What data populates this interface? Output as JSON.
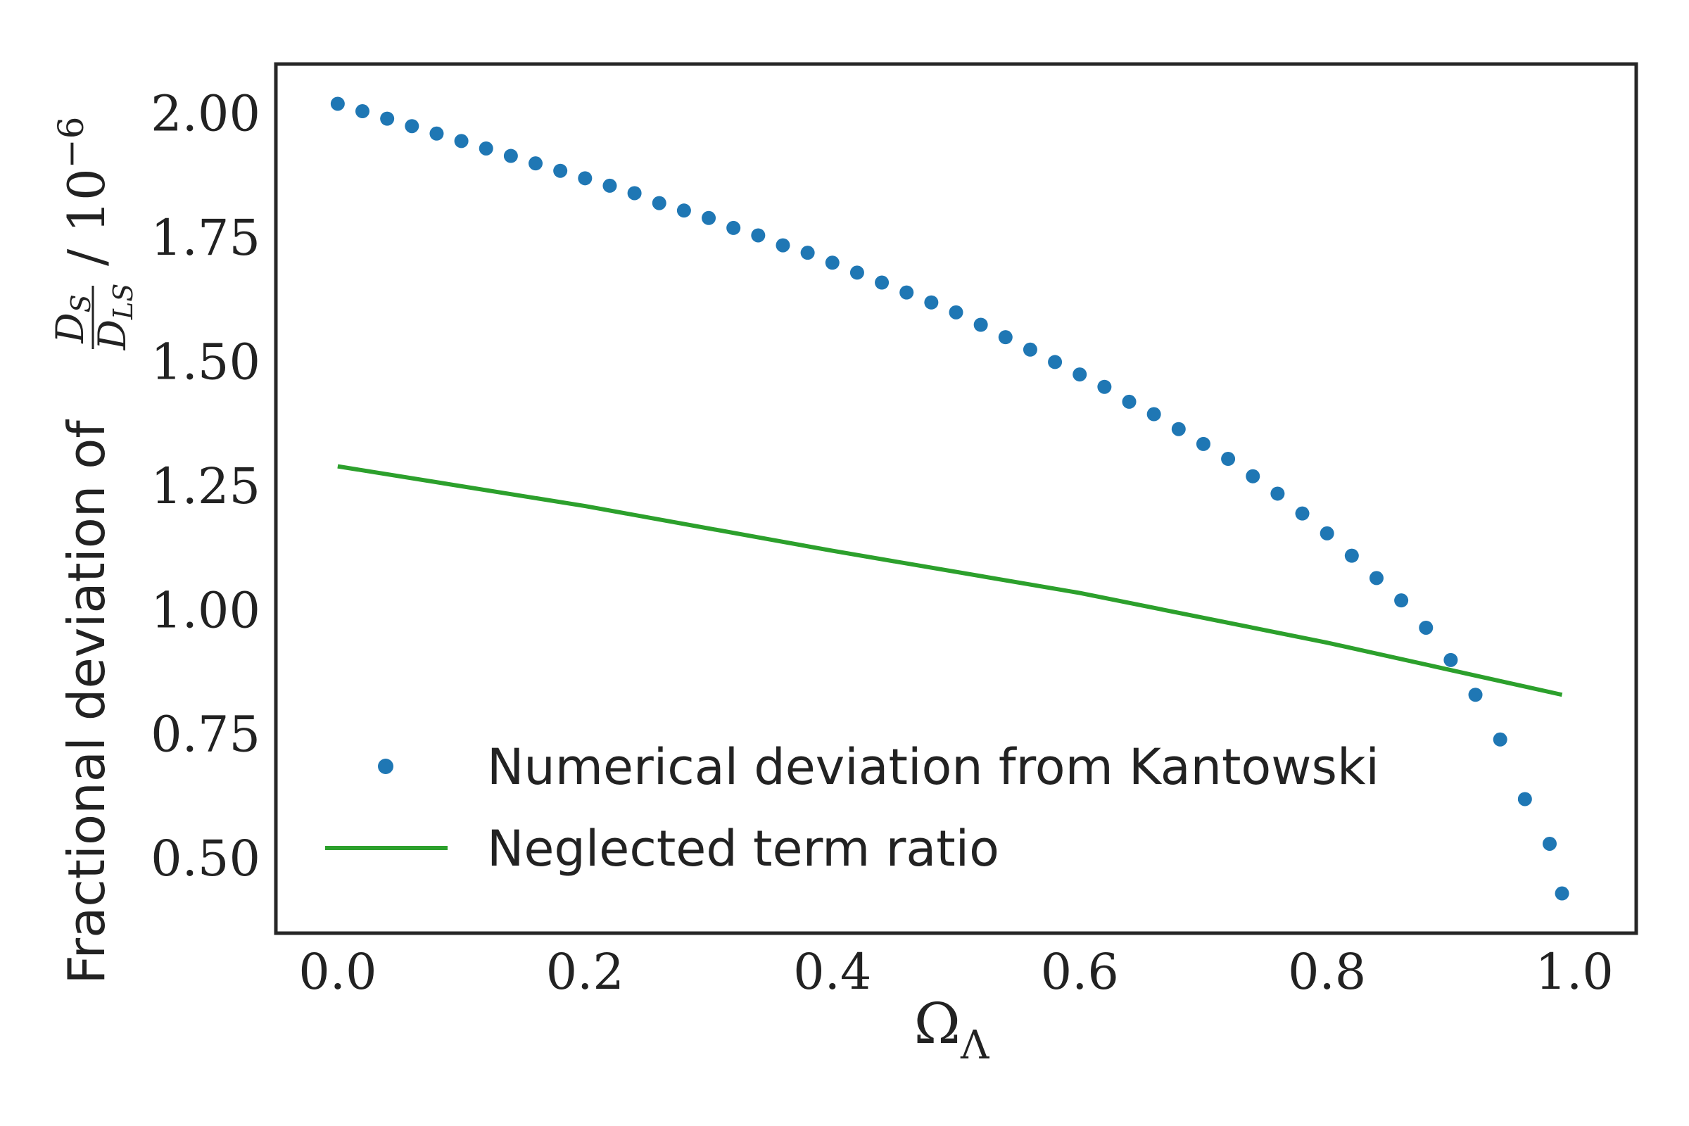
{
  "chart_data": {
    "type": "scatter",
    "title": "",
    "xlabel": {
      "base": "Ω",
      "sub": "Λ"
    },
    "ylabel": {
      "prefix": "Fractional deviation of",
      "frac_num": "D",
      "frac_num_sub": "S",
      "frac_den": "D",
      "frac_den_sub": "LS",
      "suffix": "/ 10",
      "suffix_exp": "−6"
    },
    "xlim": [
      -0.05,
      1.05
    ],
    "ylim": [
      0.35,
      2.1
    ],
    "xticks": [
      0.0,
      0.2,
      0.4,
      0.6,
      0.8,
      1.0
    ],
    "xtick_labels": [
      "0.0",
      "0.2",
      "0.4",
      "0.6",
      "0.8",
      "1.0"
    ],
    "yticks": [
      0.5,
      0.75,
      1.0,
      1.25,
      1.5,
      1.75,
      2.0
    ],
    "ytick_labels": [
      "0.50",
      "0.75",
      "1.00",
      "1.25",
      "1.50",
      "1.75",
      "2.00"
    ],
    "grid": false,
    "legend_position": "lower-left",
    "series": [
      {
        "name": "Numerical deviation from Kantowski",
        "kind": "scatter",
        "color": "#1f77b4",
        "x": [
          0.0,
          0.02,
          0.04,
          0.06,
          0.08,
          0.1,
          0.12,
          0.14,
          0.16,
          0.18,
          0.2,
          0.22,
          0.24,
          0.26,
          0.28,
          0.3,
          0.32,
          0.34,
          0.36,
          0.38,
          0.4,
          0.42,
          0.44,
          0.46,
          0.48,
          0.5,
          0.52,
          0.54,
          0.56,
          0.58,
          0.6,
          0.62,
          0.64,
          0.66,
          0.68,
          0.7,
          0.72,
          0.74,
          0.76,
          0.78,
          0.8,
          0.82,
          0.84,
          0.86,
          0.88,
          0.9,
          0.92,
          0.94,
          0.96,
          0.98,
          0.99
        ],
        "y": [
          2.02,
          2.005,
          1.99,
          1.975,
          1.96,
          1.945,
          1.93,
          1.915,
          1.9,
          1.885,
          1.87,
          1.855,
          1.84,
          1.82,
          1.805,
          1.79,
          1.77,
          1.755,
          1.735,
          1.72,
          1.7,
          1.68,
          1.66,
          1.64,
          1.62,
          1.6,
          1.575,
          1.55,
          1.525,
          1.5,
          1.475,
          1.45,
          1.42,
          1.395,
          1.365,
          1.335,
          1.305,
          1.27,
          1.235,
          1.195,
          1.155,
          1.11,
          1.065,
          1.02,
          0.965,
          0.9,
          0.83,
          0.74,
          0.62,
          0.53,
          0.43
        ]
      },
      {
        "name": "Neglected term ratio",
        "kind": "line",
        "color": "#2ca02c",
        "x": [
          0.0,
          0.2,
          0.4,
          0.6,
          0.8,
          0.99
        ],
        "y": [
          1.29,
          1.21,
          1.12,
          1.035,
          0.935,
          0.83
        ]
      }
    ]
  }
}
